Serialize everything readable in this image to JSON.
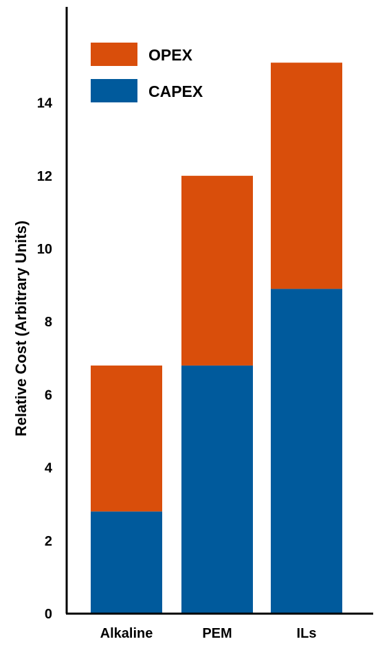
{
  "chart_data": {
    "type": "bar",
    "stacked": true,
    "categories": [
      "Alkaline",
      "PEM",
      "ILs"
    ],
    "series": [
      {
        "name": "CAPEX",
        "values": [
          2.8,
          6.8,
          8.9
        ],
        "color": "#005a9c"
      },
      {
        "name": "OPEX",
        "values": [
          4.0,
          5.2,
          6.2
        ],
        "color": "#d94e0b"
      }
    ],
    "ylabel": "Relative Cost (Arbitrary Units)",
    "ylim": [
      0,
      16
    ],
    "yticks": [
      0,
      2,
      4,
      6,
      8,
      10,
      12,
      14
    ],
    "grid": false,
    "legend_position": "top-left",
    "legend_order": [
      "OPEX",
      "CAPEX"
    ]
  }
}
